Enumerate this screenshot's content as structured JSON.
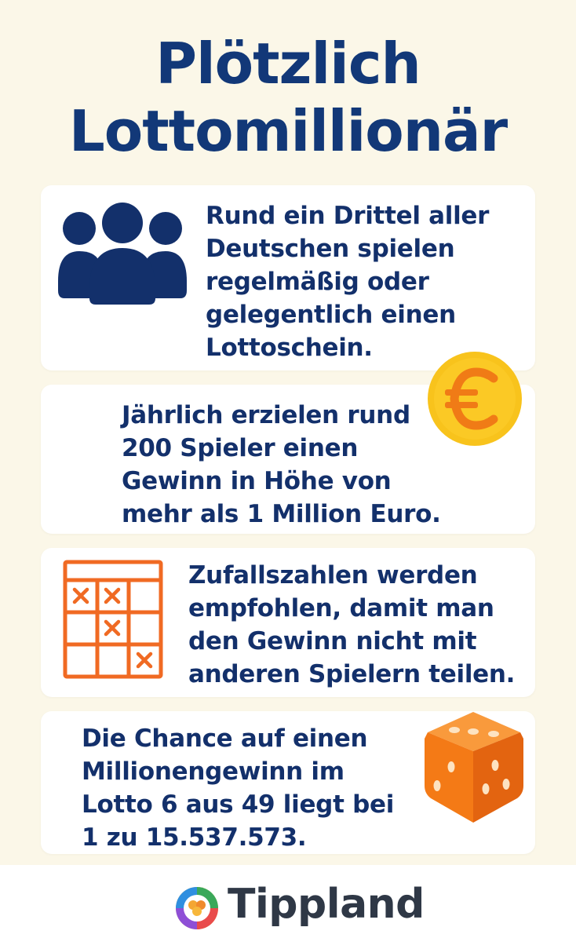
{
  "title": {
    "line1": "Plötzlich",
    "line2": "Lottomillionär"
  },
  "cards": [
    {
      "text": "Rund ein Drittel aller\nDeutschen spielen\nregelmäßig oder\ngelegentlich einen\nLottoschein.",
      "icon": "people-icon"
    },
    {
      "text": "Jährlich erzielen rund\n200 Spieler einen\nGewinn in Höhe von\nmehr als 1 Million Euro.",
      "icon": "euro-coin-icon"
    },
    {
      "text": "Zufallszahlen werden\nempfohlen, damit man\nden Gewinn nicht mit\nanderen Spielern teilen.",
      "icon": "lotto-ticket-icon"
    },
    {
      "text": "Die Chance auf einen\nMillionengewinn im\nLotto 6 aus 49 liegt bei\n1 zu 15.537.573.",
      "icon": "dice-icon"
    }
  ],
  "footer": {
    "brand": "Tippland",
    "logo_icon": "clover-logo-icon"
  },
  "colors": {
    "background": "#fbf7e8",
    "navy": "#13306b",
    "coin": "#f8c31c",
    "euro": "#f07b16",
    "ticket": "#f06a23",
    "dice": "#f47a16",
    "brand_text": "#2f3846"
  }
}
